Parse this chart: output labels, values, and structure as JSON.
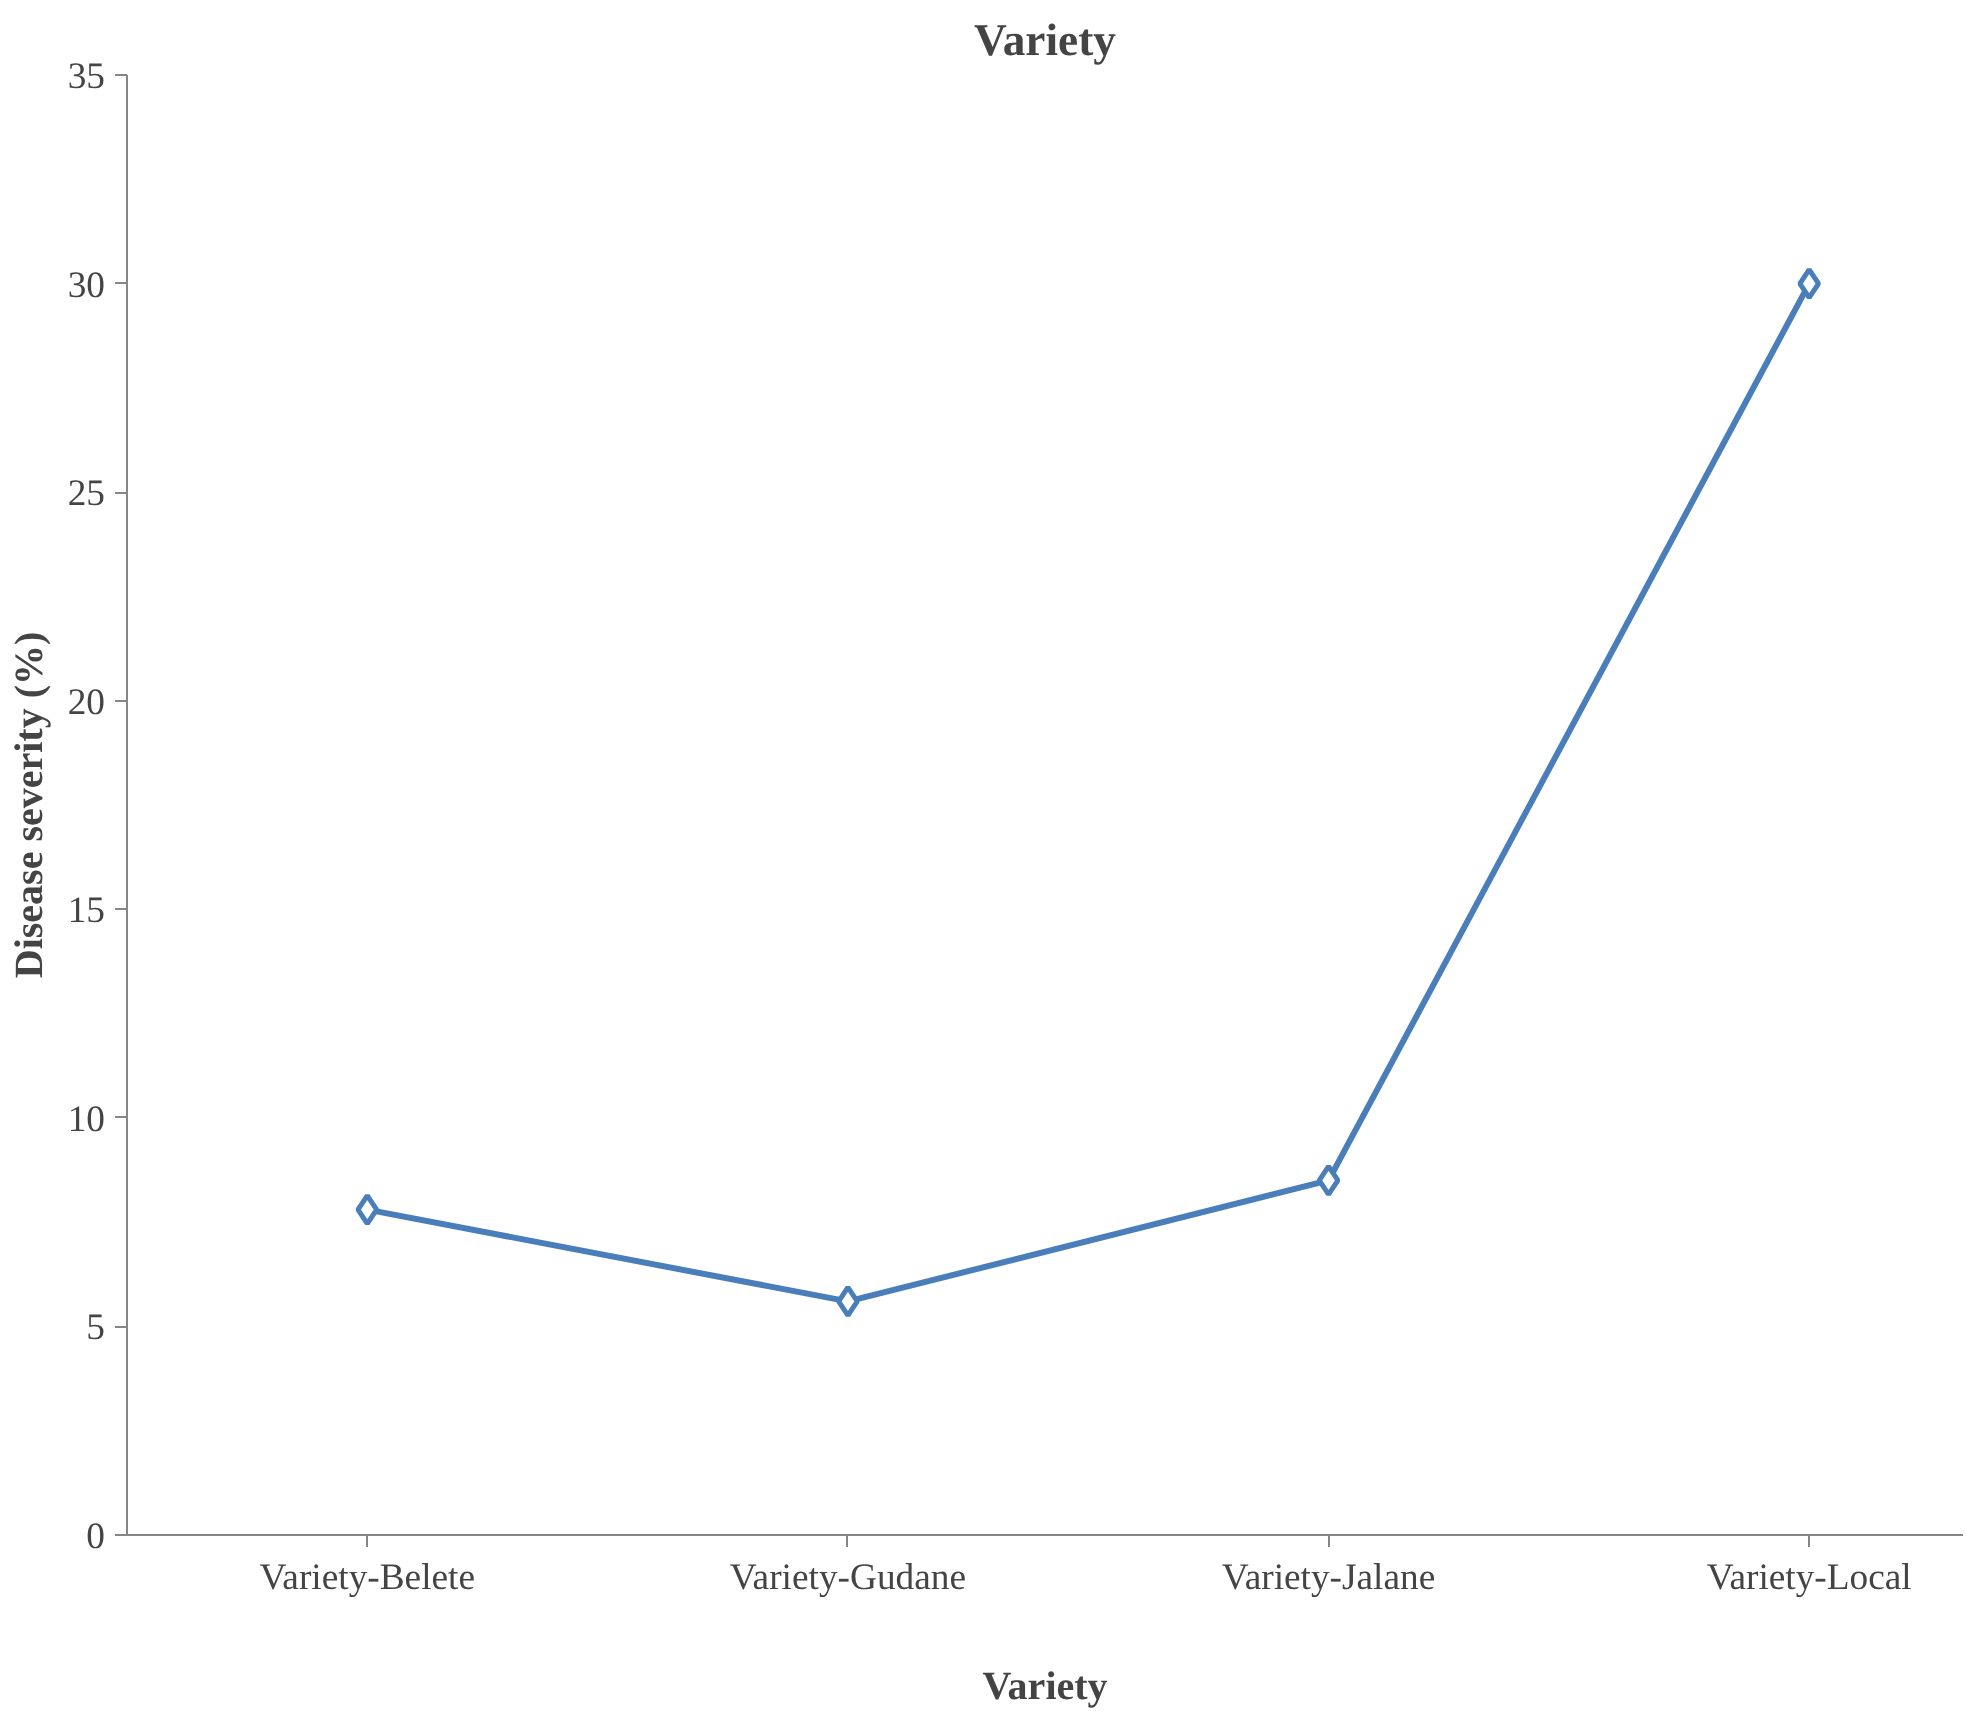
{
  "chart_data": {
    "type": "line",
    "title": "Variety",
    "xlabel": "Variety",
    "ylabel": "Disease severity (%)",
    "categories": [
      "Variety-Belete",
      "Variety-Gudane",
      "Variety-Jalane",
      "Variety-Local"
    ],
    "series": [
      {
        "color": "#4a7ebb",
        "values": [
          7.8,
          5.6,
          8.5,
          30.0
        ]
      }
    ],
    "ylim": [
      0,
      35
    ],
    "yticks": [
      0,
      5,
      10,
      15,
      20,
      25,
      30,
      35
    ],
    "grid": false,
    "marker": "diamond",
    "line_style": "solid"
  }
}
